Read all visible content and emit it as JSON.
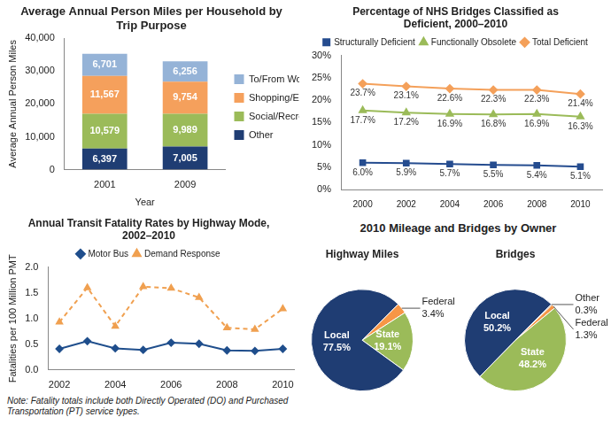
{
  "chart_data": [
    {
      "type": "bar",
      "title": "Average Annual Person Miles per Household by Trip Purpose",
      "x_label": "Year",
      "y_label": "Average Annual Person Miles",
      "categories": [
        "2001",
        "2009"
      ],
      "series": [
        {
          "name": "Other",
          "color": "#1f3d73",
          "values": [
            6397,
            7005
          ],
          "value_labels": [
            "6,397",
            "7,005"
          ]
        },
        {
          "name": "Social/Recreation",
          "color": "#9bbb59",
          "values": [
            10579,
            9989
          ],
          "value_labels": [
            "10,579",
            "9,989"
          ]
        },
        {
          "name": "Shopping/Errands",
          "color": "#f5a05c",
          "values": [
            11567,
            9754
          ],
          "value_labels": [
            "11,567",
            "9,754"
          ]
        },
        {
          "name": "To/From Work",
          "color": "#95b3d7",
          "values": [
            6701,
            6256
          ],
          "value_labels": [
            "6,701",
            "6,256"
          ]
        }
      ],
      "stacked": true,
      "data_labels": true,
      "ylim": [
        0,
        40000
      ],
      "yticks": [
        0,
        {
          "value": 10000,
          "label": "10,000"
        },
        {
          "value": 20000,
          "label": "20,000"
        },
        {
          "value": 30000,
          "label": "30,000"
        },
        {
          "value": 40000,
          "label": "40,000"
        }
      ],
      "grid": false,
      "legend": "right"
    },
    {
      "type": "line",
      "title": "Percentage of NHS Bridges Classified as Deficient, 2000–2010",
      "categories": [
        "2000",
        "2002",
        "2004",
        "2006",
        "2008",
        "2010"
      ],
      "series": [
        {
          "name": "Structurally Deficient",
          "color": "#254c8f",
          "marker": "square",
          "line_style": "solid",
          "values": [
            6.0,
            5.9,
            5.7,
            5.5,
            5.4,
            5.1
          ],
          "value_labels": [
            "6.0%",
            "5.9%",
            "5.7%",
            "5.5%",
            "5.4%",
            "5.1%"
          ]
        },
        {
          "name": "Functionally Obsolete",
          "color": "#9bbb59",
          "marker": "triangle",
          "line_style": "solid",
          "values": [
            17.7,
            17.2,
            16.9,
            16.8,
            16.9,
            16.3
          ],
          "value_labels": [
            "17.7%",
            "17.2%",
            "16.9%",
            "16.8%",
            "16.9%",
            "16.3%"
          ]
        },
        {
          "name": "Total Deficient",
          "color": "#f4a05a",
          "marker": "diamond",
          "line_style": "solid",
          "values": [
            23.7,
            23.1,
            22.6,
            22.3,
            22.3,
            21.4
          ],
          "value_labels": [
            "23.7%",
            "23.1%",
            "22.6%",
            "22.3%",
            "22.3%",
            "21.4%"
          ]
        }
      ],
      "data_labels": true,
      "ylim": [
        0,
        30
      ],
      "yticks": [
        {
          "value": 0,
          "label": "0%"
        },
        {
          "value": 5,
          "label": "5%"
        },
        {
          "value": 10,
          "label": "10%"
        },
        {
          "value": 15,
          "label": "15%"
        },
        {
          "value": 20,
          "label": "20%"
        },
        {
          "value": 25,
          "label": "25%"
        },
        {
          "value": 30,
          "label": "30%"
        }
      ],
      "grid": false,
      "legend": "top"
    },
    {
      "type": "line",
      "title": "Annual Transit Fatality Rates by Highway Mode, 2002–2010",
      "y_label": "Fatalities per 100 Million PMT",
      "x": [
        2002,
        2003,
        2004,
        2005,
        2006,
        2007,
        2008,
        2009,
        2010
      ],
      "xlim": [
        2001.6,
        2010.4
      ],
      "xticks": [
        2002,
        2004,
        2006,
        2008,
        2010
      ],
      "series": [
        {
          "name": "Motor Bus",
          "color": "#1f4e8c",
          "marker": "diamond",
          "line_style": "solid",
          "values": [
            0.41,
            0.56,
            0.42,
            0.39,
            0.53,
            0.51,
            0.38,
            0.37,
            0.41
          ]
        },
        {
          "name": "Demand Response",
          "color": "#f0a050",
          "marker": "triangle",
          "line_style": "dashed",
          "values": [
            0.93,
            1.6,
            0.85,
            1.62,
            1.59,
            1.41,
            0.82,
            0.79,
            1.19
          ]
        }
      ],
      "ylim": [
        0,
        2
      ],
      "yticks": [
        {
          "value": 0,
          "label": "0.0"
        },
        {
          "value": 0.5,
          "label": "0.5"
        },
        {
          "value": 1,
          "label": "1.0"
        },
        {
          "value": 1.5,
          "label": "1.5"
        },
        {
          "value": 2,
          "label": "2.0"
        }
      ],
      "grid": false,
      "legend": "top",
      "note": "Note: Fatality totals include both Directly Operated (DO) and Purchased Transportation (PT) service types."
    },
    {
      "type": "pie",
      "title": "2010 Mileage and Bridges by Owner",
      "data_labels": true,
      "pies": [
        {
          "subtitle": "Highway Miles",
          "categories": [
            "Federal",
            "State",
            "Local"
          ],
          "values": [
            3.4,
            19.1,
            77.5
          ],
          "value_labels": [
            "3.4%",
            "19.1%",
            "77.5%"
          ],
          "colors": [
            "#f79646",
            "#9bbb59",
            "#1f3d73"
          ]
        },
        {
          "subtitle": "Bridges",
          "categories": [
            "Other",
            "Federal",
            "State",
            "Local"
          ],
          "values": [
            0.3,
            1.3,
            48.2,
            50.2
          ],
          "value_labels": [
            "0.3%",
            "1.3%",
            "48.2%",
            "50.2%"
          ],
          "colors": [
            "#222222",
            "#f79646",
            "#9bbb59",
            "#1f3d73"
          ]
        }
      ]
    }
  ]
}
